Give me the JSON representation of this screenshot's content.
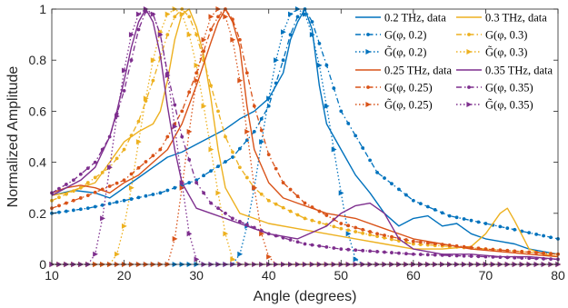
{
  "chart_data": {
    "type": "line",
    "title": "",
    "xlabel": "Angle (degrees)",
    "ylabel": "Normalized Amplitude",
    "xlim": [
      10,
      80
    ],
    "ylim": [
      0,
      1
    ],
    "xticks": [
      10,
      20,
      30,
      40,
      50,
      60,
      70,
      80
    ],
    "yticks": [
      0,
      0.2,
      0.4,
      0.6,
      0.8,
      1
    ],
    "grid": false,
    "legend_placement": "top-right",
    "legend_columns": 2,
    "colors": {
      "f02": "#0072BD",
      "f03": "#EDB120",
      "f025": "#D95319",
      "f035": "#7E2F8E"
    },
    "series": [
      {
        "name": "0.2 THz, data",
        "color_key": "f02",
        "style": "solid",
        "marker": "none",
        "x": [
          10,
          13,
          16,
          18,
          20,
          22,
          24,
          26,
          28,
          30,
          32,
          34,
          36,
          38,
          40,
          41,
          42,
          43,
          44,
          45,
          46,
          47,
          48,
          50,
          52,
          54,
          56,
          58,
          60,
          62,
          64,
          66,
          68,
          70,
          72,
          74,
          76,
          78,
          80
        ],
        "y": [
          0.27,
          0.29,
          0.28,
          0.26,
          0.3,
          0.34,
          0.38,
          0.42,
          0.44,
          0.47,
          0.5,
          0.53,
          0.57,
          0.6,
          0.65,
          0.7,
          0.75,
          0.88,
          0.95,
          1.0,
          0.92,
          0.7,
          0.55,
          0.45,
          0.35,
          0.28,
          0.2,
          0.15,
          0.18,
          0.19,
          0.15,
          0.16,
          0.12,
          0.1,
          0.09,
          0.08,
          0.06,
          0.05,
          0.04
        ]
      },
      {
        "name": "G(φ, 0.2)",
        "color_key": "f02",
        "style": "dashdot",
        "marker": "dot",
        "x": [
          10,
          15,
          20,
          25,
          30,
          35,
          38,
          40,
          42,
          43,
          44,
          45,
          46,
          48,
          50,
          55,
          60,
          65,
          70,
          75,
          80
        ],
        "y": [
          0.2,
          0.22,
          0.25,
          0.28,
          0.33,
          0.42,
          0.52,
          0.62,
          0.8,
          0.9,
          0.97,
          1.0,
          0.95,
          0.78,
          0.6,
          0.36,
          0.25,
          0.19,
          0.16,
          0.13,
          0.1
        ]
      },
      {
        "name": "G̃(φ, 0.2)",
        "color_key": "f02",
        "style": "dotted",
        "marker": "triangle",
        "x": [
          10,
          20,
          30,
          35,
          36,
          37,
          38,
          39,
          40,
          41,
          42,
          43,
          44,
          45,
          46,
          47,
          48,
          49,
          50,
          51,
          52,
          53,
          60,
          70,
          80
        ],
        "y": [
          0,
          0,
          0,
          0,
          0.04,
          0.15,
          0.3,
          0.48,
          0.65,
          0.8,
          0.91,
          0.98,
          1.0,
          0.98,
          0.9,
          0.78,
          0.62,
          0.45,
          0.28,
          0.12,
          0.02,
          0,
          0,
          0,
          0
        ]
      },
      {
        "name": "0.3 THz, data",
        "color_key": "f03",
        "style": "solid",
        "marker": "none",
        "x": [
          10,
          12,
          14,
          16,
          18,
          20,
          22,
          24,
          25,
          26,
          27,
          28,
          29,
          30,
          31,
          32,
          33,
          34,
          36,
          38,
          40,
          44,
          48,
          52,
          56,
          60,
          64,
          68,
          70,
          72,
          73,
          74,
          76,
          78,
          80
        ],
        "y": [
          0.27,
          0.28,
          0.3,
          0.32,
          0.4,
          0.48,
          0.52,
          0.55,
          0.6,
          0.72,
          0.88,
          0.98,
          1.0,
          0.93,
          0.82,
          0.65,
          0.45,
          0.3,
          0.2,
          0.18,
          0.16,
          0.14,
          0.12,
          0.1,
          0.08,
          0.06,
          0.06,
          0.07,
          0.12,
          0.2,
          0.22,
          0.17,
          0.06,
          0.04,
          0.03
        ]
      },
      {
        "name": "G(φ, 0.3)",
        "color_key": "f03",
        "style": "dashdot",
        "marker": "dot",
        "x": [
          10,
          14,
          18,
          20,
          22,
          24,
          26,
          27,
          28,
          29,
          30,
          32,
          34,
          36,
          38,
          40,
          45,
          50,
          55,
          60,
          70,
          80
        ],
        "y": [
          0.25,
          0.3,
          0.38,
          0.45,
          0.56,
          0.72,
          0.9,
          0.97,
          1.0,
          0.97,
          0.9,
          0.7,
          0.5,
          0.38,
          0.3,
          0.25,
          0.18,
          0.14,
          0.11,
          0.08,
          0.06,
          0.04
        ]
      },
      {
        "name": "G̃(φ, 0.3)",
        "color_key": "f03",
        "style": "dotted",
        "marker": "triangle",
        "x": [
          10,
          18,
          19,
          20,
          21,
          22,
          23,
          24,
          25,
          26,
          27,
          28,
          29,
          30,
          31,
          32,
          33,
          34,
          35,
          36,
          40,
          50,
          60,
          70,
          80
        ],
        "y": [
          0,
          0,
          0.04,
          0.15,
          0.3,
          0.48,
          0.65,
          0.8,
          0.91,
          0.98,
          1.0,
          0.98,
          0.9,
          0.78,
          0.62,
          0.45,
          0.28,
          0.12,
          0.02,
          0,
          0,
          0,
          0,
          0,
          0
        ]
      },
      {
        "name": "0.25 THz, data",
        "color_key": "f025",
        "style": "solid",
        "marker": "none",
        "x": [
          10,
          12,
          14,
          16,
          18,
          20,
          22,
          24,
          26,
          28,
          30,
          32,
          33,
          34,
          35,
          36,
          37,
          38,
          40,
          42,
          44,
          48,
          52,
          56,
          60,
          64,
          68,
          72,
          76,
          80
        ],
        "y": [
          0.28,
          0.3,
          0.31,
          0.3,
          0.28,
          0.32,
          0.35,
          0.4,
          0.45,
          0.55,
          0.7,
          0.87,
          0.95,
          1.0,
          0.95,
          0.85,
          0.62,
          0.45,
          0.32,
          0.26,
          0.24,
          0.2,
          0.18,
          0.14,
          0.1,
          0.08,
          0.06,
          0.05,
          0.04,
          0.03
        ]
      },
      {
        "name": "G(φ, 0.25)",
        "color_key": "f025",
        "style": "dashdot",
        "marker": "dot",
        "x": [
          10,
          15,
          20,
          25,
          28,
          30,
          32,
          33,
          34,
          35,
          36,
          38,
          40,
          42,
          45,
          50,
          55,
          60,
          70,
          80
        ],
        "y": [
          0.22,
          0.27,
          0.33,
          0.45,
          0.6,
          0.75,
          0.92,
          0.97,
          1.0,
          0.96,
          0.88,
          0.62,
          0.43,
          0.32,
          0.24,
          0.16,
          0.12,
          0.09,
          0.06,
          0.04
        ]
      },
      {
        "name": "G̃(φ, 0.25)",
        "color_key": "f025",
        "style": "dotted",
        "marker": "triangle",
        "x": [
          10,
          20,
          26,
          27,
          28,
          29,
          30,
          31,
          32,
          33,
          34,
          35,
          36,
          37,
          38,
          39,
          40,
          41,
          42,
          50,
          60,
          70,
          80
        ],
        "y": [
          0,
          0,
          0,
          0.1,
          0.3,
          0.52,
          0.72,
          0.88,
          0.97,
          1.0,
          0.97,
          0.88,
          0.72,
          0.52,
          0.3,
          0.12,
          0.03,
          0,
          0,
          0,
          0,
          0,
          0
        ]
      },
      {
        "name": "0.35 THz, data",
        "color_key": "f035",
        "style": "solid",
        "marker": "none",
        "x": [
          10,
          12,
          14,
          16,
          18,
          19,
          20,
          21,
          22,
          23,
          24,
          25,
          26,
          27,
          28,
          30,
          32,
          34,
          36,
          38,
          40,
          44,
          48,
          50,
          52,
          54,
          56,
          58,
          60,
          64,
          68,
          72,
          76,
          80
        ],
        "y": [
          0.27,
          0.3,
          0.33,
          0.38,
          0.5,
          0.6,
          0.72,
          0.85,
          0.95,
          1.0,
          0.95,
          0.82,
          0.62,
          0.45,
          0.32,
          0.22,
          0.2,
          0.18,
          0.16,
          0.14,
          0.12,
          0.1,
          0.15,
          0.2,
          0.23,
          0.24,
          0.2,
          0.1,
          0.06,
          0.04,
          0.04,
          0.03,
          0.03,
          0.02
        ]
      },
      {
        "name": "G(φ, 0.35)",
        "color_key": "f035",
        "style": "dashdot",
        "marker": "dot",
        "x": [
          10,
          13,
          16,
          18,
          20,
          21,
          22,
          23,
          24,
          25,
          26,
          28,
          30,
          32,
          35,
          40,
          45,
          50,
          55,
          60,
          70,
          80
        ],
        "y": [
          0.28,
          0.33,
          0.4,
          0.5,
          0.68,
          0.8,
          0.92,
          0.99,
          0.98,
          0.9,
          0.75,
          0.5,
          0.32,
          0.24,
          0.18,
          0.12,
          0.08,
          0.06,
          0.05,
          0.04,
          0.03,
          0.02
        ]
      },
      {
        "name": "G̃(φ, 0.35)",
        "color_key": "f035",
        "style": "dotted",
        "marker": "triangle",
        "x": [
          10,
          15,
          16,
          17,
          18,
          19,
          20,
          21,
          22,
          23,
          24,
          25,
          26,
          27,
          28,
          29,
          30,
          31,
          40,
          50,
          60,
          70,
          80
        ],
        "y": [
          0,
          0,
          0.04,
          0.18,
          0.38,
          0.58,
          0.76,
          0.9,
          0.98,
          1.0,
          0.98,
          0.9,
          0.74,
          0.54,
          0.32,
          0.12,
          0.02,
          0,
          0,
          0,
          0,
          0,
          0
        ]
      }
    ],
    "legend_entries": [
      "0.2 THz, data",
      "0.3 THz, data",
      "G(φ, 0.2)",
      "G(φ, 0.3)",
      "G̃(φ, 0.2)",
      "G̃(φ, 0.3)",
      "0.25 THz, data",
      "0.35 THz, data",
      "G(φ, 0.25)",
      "G(φ, 0.35)",
      "G̃(φ, 0.25)",
      "G̃(φ, 0.35)"
    ]
  }
}
